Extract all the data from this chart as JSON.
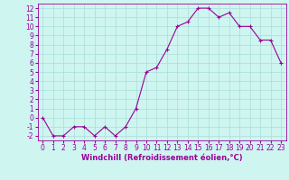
{
  "xlabel": "Windchill (Refroidissement éolien,°C)",
  "x": [
    0,
    1,
    2,
    3,
    4,
    5,
    6,
    7,
    8,
    9,
    10,
    11,
    12,
    13,
    14,
    15,
    16,
    17,
    18,
    19,
    20,
    21,
    22,
    23
  ],
  "y": [
    0,
    -2,
    -2,
    -1,
    -1,
    -2,
    -1,
    -2,
    -1,
    1,
    5,
    5.5,
    7.5,
    10,
    10.5,
    12,
    12,
    11,
    11.5,
    10,
    10,
    8.5,
    8.5,
    6
  ],
  "line_color": "#990099",
  "marker": "+",
  "bg_color": "#cef5f0",
  "grid_color": "#aaddd8",
  "tick_color": "#990099",
  "label_color": "#990099",
  "xlim": [
    -0.5,
    23.5
  ],
  "ylim": [
    -2.5,
    12.5
  ],
  "yticks": [
    -2,
    -1,
    0,
    1,
    2,
    3,
    4,
    5,
    6,
    7,
    8,
    9,
    10,
    11,
    12
  ],
  "xticks": [
    0,
    1,
    2,
    3,
    4,
    5,
    6,
    7,
    8,
    9,
    10,
    11,
    12,
    13,
    14,
    15,
    16,
    17,
    18,
    19,
    20,
    21,
    22,
    23
  ],
  "tick_fontsize": 5.5,
  "xlabel_fontsize": 6.0
}
